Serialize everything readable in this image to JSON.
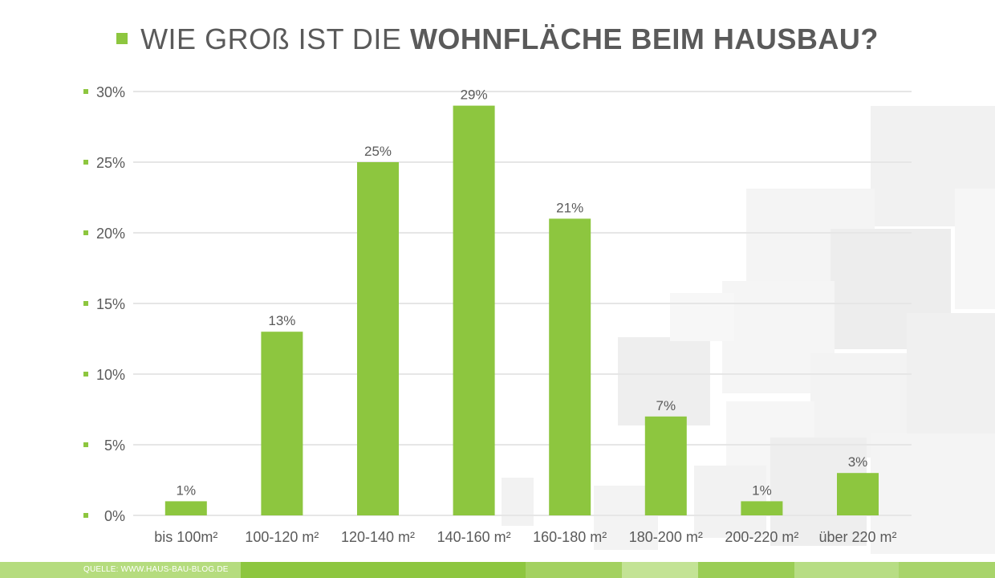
{
  "title": {
    "part1": "WIE GROß IST DIE",
    "part2": "WOHNFLÄCHE BEIM HAUSBAU?"
  },
  "source": "QUELLE: WWW.HAUS-BAU-BLOG.DE",
  "colors": {
    "accent": "#8dc63f",
    "text": "#5a5a5a",
    "grid": "#e6e6e6",
    "footer": "#a8d46b"
  },
  "chart_data": {
    "type": "bar",
    "title": "WIE GROß IST DIE WOHNFLÄCHE BEIM HAUSBAU?",
    "categories": [
      "bis 100m²",
      "100-120 m²",
      "120-140 m²",
      "140-160 m²",
      "160-180 m²",
      "180-200 m²",
      "200-220 m²",
      "über 220 m²"
    ],
    "values": [
      1,
      13,
      25,
      29,
      21,
      7,
      1,
      3
    ],
    "value_labels": [
      "1%",
      "13%",
      "25%",
      "29%",
      "21%",
      "7%",
      "1%",
      "3%"
    ],
    "yticks": [
      "0%",
      "5%",
      "10%",
      "15%",
      "20%",
      "25%",
      "30%"
    ],
    "ylim": [
      0,
      30
    ],
    "grid": true,
    "legend": "none"
  }
}
